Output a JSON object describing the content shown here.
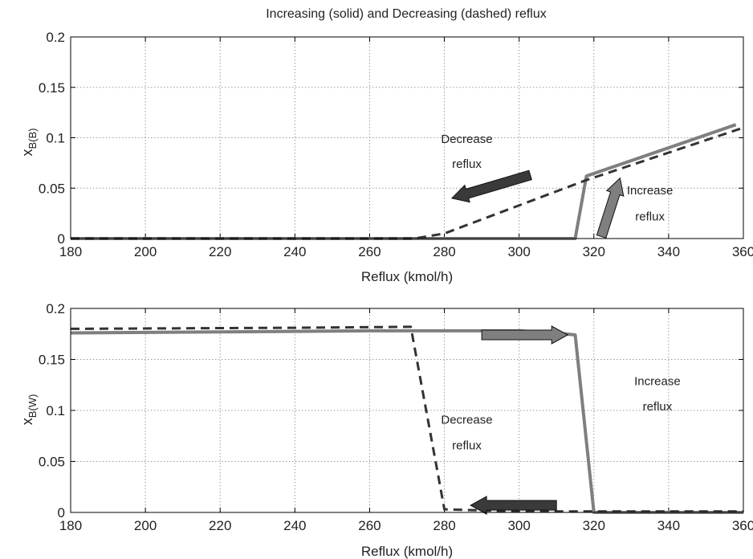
{
  "chart_data": [
    {
      "type": "line",
      "title": "Increasing (solid) and Decreasing (dashed) reflux",
      "xlabel": "Reflux (kmol/h)",
      "ylabel_main": "x",
      "ylabel_sub": "B(B)",
      "xlim": [
        180,
        360
      ],
      "ylim": [
        0,
        0.2
      ],
      "xticks": [
        180,
        200,
        220,
        240,
        260,
        280,
        300,
        320,
        340,
        360
      ],
      "xtick_labels": [
        "180",
        "200",
        "220",
        "240",
        "260",
        "280",
        "300",
        "320",
        "340",
        "360"
      ],
      "yticks": [
        0,
        0.05,
        0.1,
        0.15,
        0.2
      ],
      "ytick_labels": [
        "0",
        "0.05",
        "0.1",
        "0.15",
        "0.2"
      ],
      "grid": true,
      "series": [
        {
          "style": "solid",
          "color": "#7f7f7f",
          "x": [
            180,
            315,
            318,
            358
          ],
          "y": [
            0,
            0,
            0.062,
            0.113
          ]
        },
        {
          "style": "dashed",
          "color": "#333333",
          "x": [
            180,
            272,
            280,
            318,
            360
          ],
          "y": [
            0,
            0,
            0.005,
            0.058,
            0.11
          ]
        }
      ],
      "annotations": [
        {
          "text": "Decrease",
          "x": 286,
          "y": 0.095
        },
        {
          "text": "reflux",
          "x": 286,
          "y": 0.07
        },
        {
          "text": "Increase",
          "x": 335,
          "y": 0.044
        },
        {
          "text": "reflux",
          "x": 335,
          "y": 0.018
        }
      ],
      "arrows": [
        {
          "x1": 303,
          "y1": 0.063,
          "x2": 282,
          "y2": 0.04,
          "color": "#3a3a3a"
        },
        {
          "x1": 322,
          "y1": 0.002,
          "x2": 327,
          "y2": 0.06,
          "color": "#7f7f7f"
        }
      ]
    },
    {
      "type": "line",
      "xlabel": "Reflux (kmol/h)",
      "ylabel_main": "x",
      "ylabel_sub": "B(W)",
      "xlim": [
        180,
        360
      ],
      "ylim": [
        0,
        0.2
      ],
      "xticks": [
        180,
        200,
        220,
        240,
        260,
        280,
        300,
        320,
        340,
        360
      ],
      "xtick_labels": [
        "180",
        "200",
        "220",
        "240",
        "260",
        "280",
        "300",
        "320",
        "340",
        "360"
      ],
      "yticks": [
        0,
        0.05,
        0.1,
        0.15,
        0.2
      ],
      "ytick_labels": [
        "0",
        "0.05",
        "0.1",
        "0.15",
        "0.2"
      ],
      "grid": true,
      "series": [
        {
          "style": "solid",
          "color": "#7f7f7f",
          "x": [
            180,
            260,
            300,
            310,
            315,
            320,
            360
          ],
          "y": [
            0.176,
            0.178,
            0.178,
            0.176,
            0.174,
            0,
            0
          ]
        },
        {
          "style": "dashed",
          "color": "#333333",
          "x": [
            180,
            240,
            271,
            280,
            300,
            360
          ],
          "y": [
            0.18,
            0.181,
            0.182,
            0.003,
            0.001,
            0.001
          ]
        }
      ],
      "annotations": [
        {
          "text": "Increase",
          "x": 337,
          "y": 0.125
        },
        {
          "text": "reflux",
          "x": 337,
          "y": 0.1
        },
        {
          "text": "Decrease",
          "x": 286,
          "y": 0.087
        },
        {
          "text": "reflux",
          "x": 286,
          "y": 0.062
        }
      ],
      "arrows": [
        {
          "x1": 290,
          "y1": 0.174,
          "x2": 313,
          "y2": 0.174,
          "color": "#7f7f7f"
        },
        {
          "x1": 310,
          "y1": 0.007,
          "x2": 287,
          "y2": 0.007,
          "color": "#3a3a3a"
        }
      ]
    }
  ]
}
